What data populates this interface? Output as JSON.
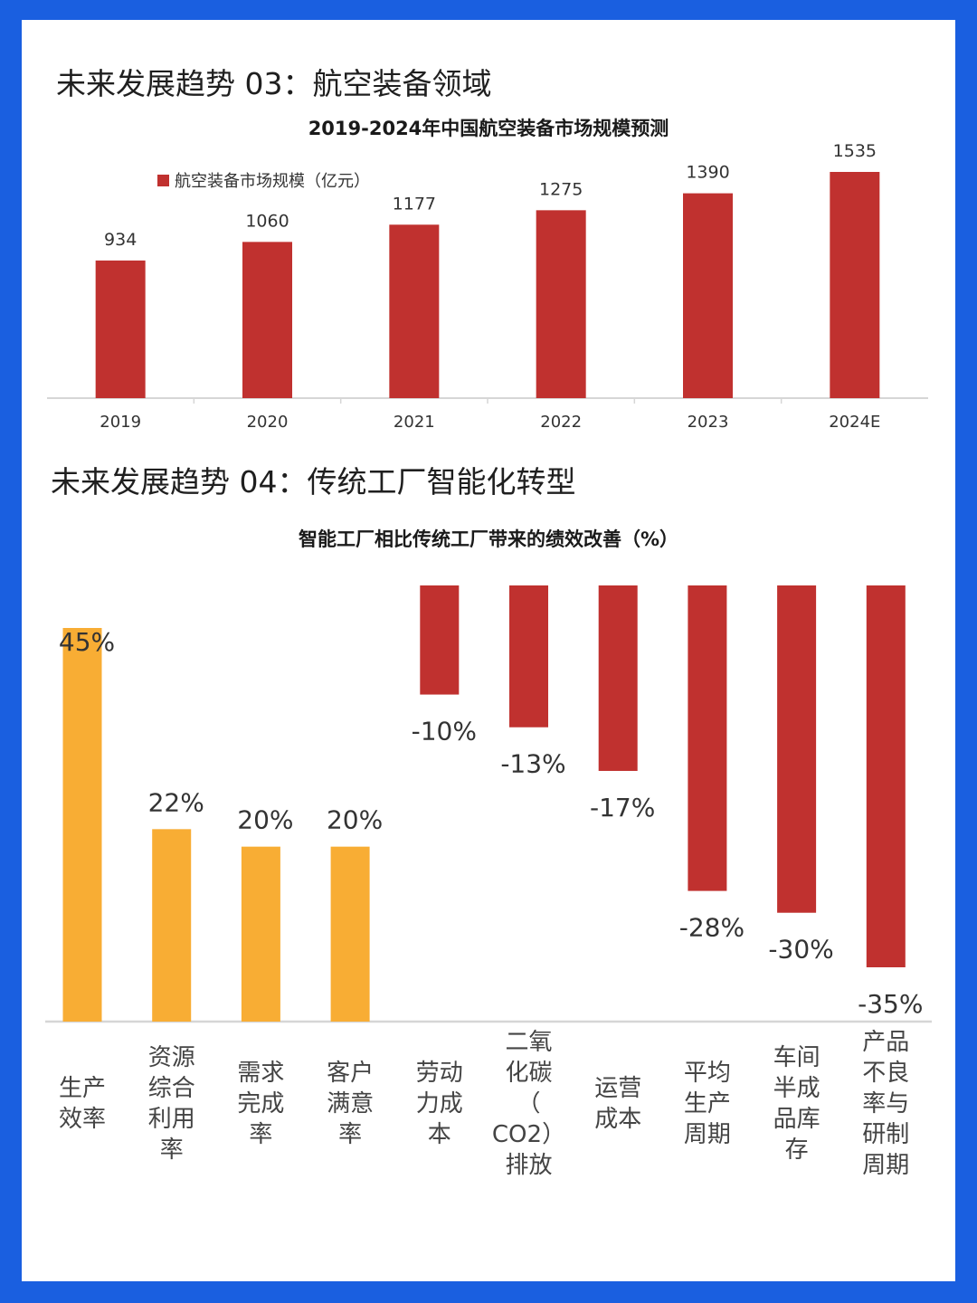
{
  "section1": {
    "title": "未来发展趋势 03：航空装备领域"
  },
  "section2": {
    "title": "未来发展趋势 04：传统工厂智能化转型"
  },
  "colors": {
    "page_border": "#1a5fe0",
    "bar_red": "#c0312f",
    "bar_orange": "#f8ad34",
    "axis": "#d6d6d6"
  },
  "chart_data": [
    {
      "type": "bar",
      "title": "2019-2024年中国航空装备市场规模预测",
      "categories": [
        "2019",
        "2020",
        "2021",
        "2022",
        "2023",
        "2024E"
      ],
      "series": [
        {
          "name": "航空装备市场规模（亿元）",
          "values": [
            934,
            1060,
            1177,
            1275,
            1390,
            1535
          ]
        }
      ],
      "value_labels": [
        "934",
        "1060",
        "1177",
        "1275",
        "1390",
        "1535"
      ],
      "ylim": [
        0,
        1600
      ],
      "legend": "top-left",
      "grid": false
    },
    {
      "type": "bar",
      "title": "智能工厂相比传统工厂带来的绩效改善（%）",
      "categories": [
        [
          "生产",
          "效率"
        ],
        [
          "资源",
          "综合",
          "利用",
          "率"
        ],
        [
          "需求",
          "完成",
          "率"
        ],
        [
          "客户",
          "满意",
          "率"
        ],
        [
          "劳动",
          "力成",
          "本"
        ],
        [
          "二氧",
          "化碳",
          "（",
          "CO2）",
          "排放"
        ],
        [
          "运营",
          "成本"
        ],
        [
          "平均",
          "生产",
          "周期"
        ],
        [
          "车间",
          "半成",
          "品库",
          "存"
        ],
        [
          "产品",
          "不良",
          "率与",
          "研制",
          "周期"
        ]
      ],
      "values": [
        45,
        22,
        20,
        20,
        -10,
        -13,
        -17,
        -28,
        -30,
        -35
      ],
      "value_labels": [
        "45%",
        "22%",
        "20%",
        "20%",
        "-10%",
        "-13%",
        "-17%",
        "-28%",
        "-30%",
        "-35%"
      ],
      "unit": "%",
      "positive_color": "#f8ad34",
      "negative_color": "#c0312f",
      "grid": false
    }
  ]
}
